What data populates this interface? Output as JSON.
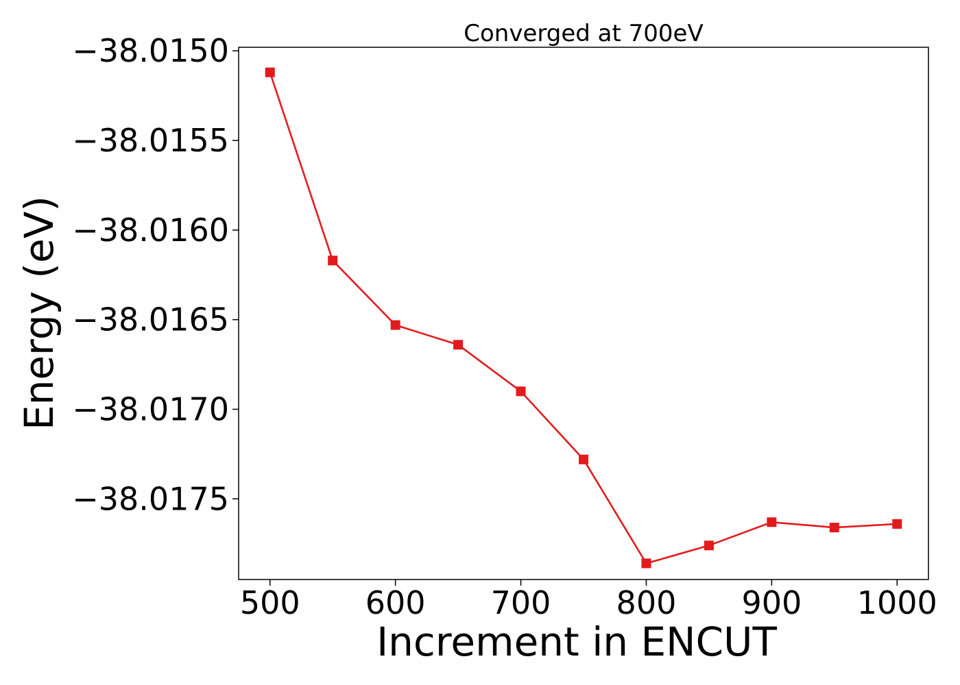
{
  "chart_data": {
    "type": "line",
    "title": "Converged at 700eV",
    "xlabel": "Increment in ENCUT",
    "ylabel": "Energy (eV)",
    "x": [
      500,
      550,
      600,
      650,
      700,
      750,
      800,
      850,
      900,
      950,
      1000
    ],
    "series": [
      {
        "values": [
          -38.01512,
          -38.01617,
          -38.01653,
          -38.01664,
          -38.0169,
          -38.01728,
          -38.01786,
          -38.01776,
          -38.01763,
          -38.01766,
          -38.01764
        ],
        "color": "#e31a1c",
        "marker": "square"
      }
    ],
    "xticks": [
      500,
      600,
      700,
      800,
      900,
      1000
    ],
    "xtick_labels": [
      "500",
      "600",
      "700",
      "800",
      "900",
      "1000"
    ],
    "yticks": [
      -38.015,
      -38.0155,
      -38.016,
      -38.0165,
      -38.017,
      -38.0175
    ],
    "ytick_labels": [
      "−38.0150",
      "−38.0155",
      "−38.0160",
      "−38.0165",
      "−38.0170",
      "−38.0175"
    ],
    "xlim": [
      475,
      1025
    ],
    "ylim": [
      -38.01795,
      -38.01498
    ],
    "grid": false,
    "legend": "none"
  }
}
